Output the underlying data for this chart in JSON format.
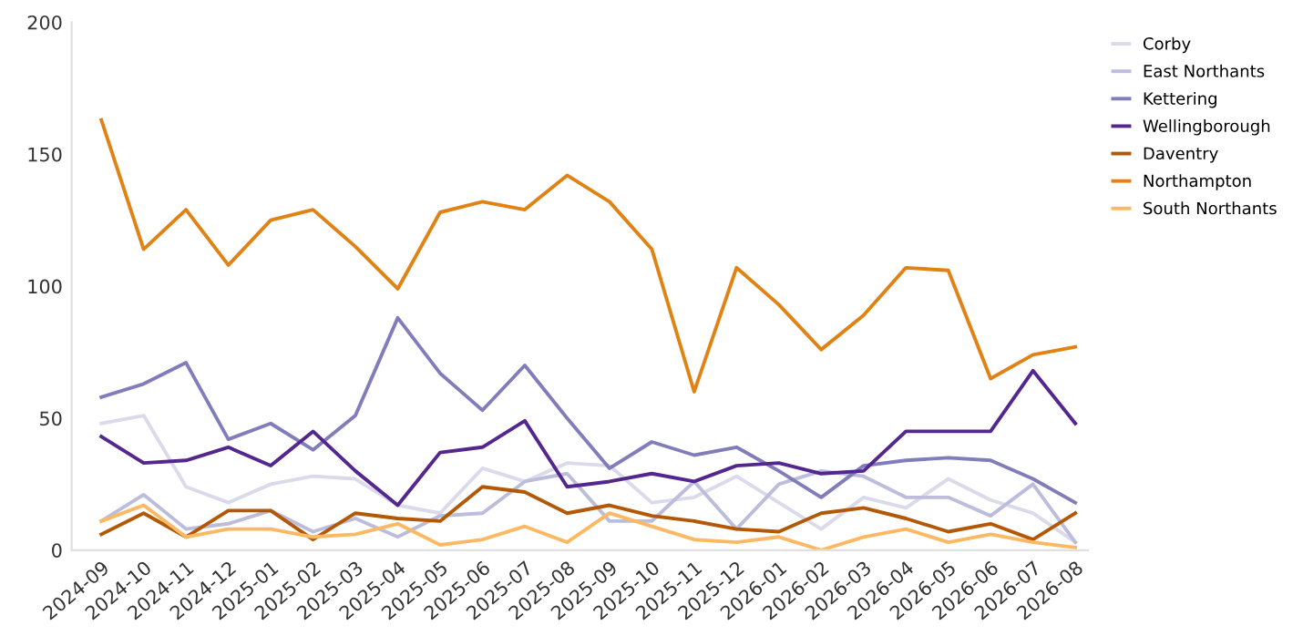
{
  "chart_data": {
    "type": "line",
    "categories": [
      "2024-09",
      "2024-10",
      "2024-11",
      "2024-12",
      "2025-01",
      "2025-02",
      "2025-03",
      "2025-04",
      "2025-05",
      "2025-06",
      "2025-07",
      "2025-08",
      "2025-09",
      "2025-10",
      "2025-11",
      "2025-12",
      "2026-01",
      "2026-02",
      "2026-03",
      "2026-04",
      "2026-05",
      "2026-06",
      "2026-07",
      "2026-08"
    ],
    "series": [
      {
        "name": "Corby",
        "color": "#dadaeb",
        "values": [
          48,
          51,
          24,
          18,
          25,
          28,
          27,
          17,
          14,
          31,
          26,
          33,
          32,
          18,
          20,
          28,
          18,
          8,
          20,
          16,
          27,
          19,
          14,
          3
        ]
      },
      {
        "name": "East Northants",
        "color": "#bcbddc",
        "values": [
          11,
          21,
          8,
          10,
          15,
          7,
          12,
          5,
          13,
          14,
          26,
          29,
          11,
          11,
          26,
          8,
          25,
          30,
          28,
          20,
          20,
          13,
          25,
          3
        ]
      },
      {
        "name": "Kettering",
        "color": "#807dba",
        "values": [
          58,
          63,
          71,
          42,
          48,
          38,
          51,
          88,
          67,
          53,
          70,
          50,
          31,
          41,
          36,
          39,
          30,
          20,
          32,
          34,
          35,
          34,
          27,
          18
        ]
      },
      {
        "name": "Wellingborough",
        "color": "#54278f",
        "values": [
          43,
          33,
          34,
          39,
          32,
          45,
          30,
          17,
          37,
          39,
          49,
          24,
          26,
          29,
          26,
          32,
          33,
          29,
          30,
          45,
          45,
          45,
          68,
          48
        ]
      },
      {
        "name": "Daventry",
        "color": "#b35806",
        "values": [
          6,
          14,
          5,
          15,
          15,
          4,
          14,
          12,
          11,
          24,
          22,
          14,
          17,
          13,
          11,
          8,
          7,
          14,
          16,
          12,
          7,
          10,
          4,
          14
        ]
      },
      {
        "name": "Northampton",
        "color": "#e08214",
        "values": [
          163,
          114,
          129,
          108,
          125,
          129,
          115,
          99,
          128,
          132,
          129,
          142,
          132,
          114,
          60,
          107,
          93,
          76,
          89,
          107,
          106,
          65,
          74,
          77
        ]
      },
      {
        "name": "South Northants",
        "color": "#fdb863",
        "values": [
          11,
          17,
          5,
          8,
          8,
          5,
          6,
          10,
          2,
          4,
          9,
          3,
          14,
          9,
          4,
          3,
          5,
          0,
          5,
          8,
          3,
          6,
          3,
          1
        ]
      }
    ],
    "ylim": [
      0,
      200
    ],
    "yticks": [
      0,
      50,
      100,
      150,
      200
    ],
    "grid": false,
    "legend": "right",
    "marker": "none",
    "line_style": "solid"
  }
}
